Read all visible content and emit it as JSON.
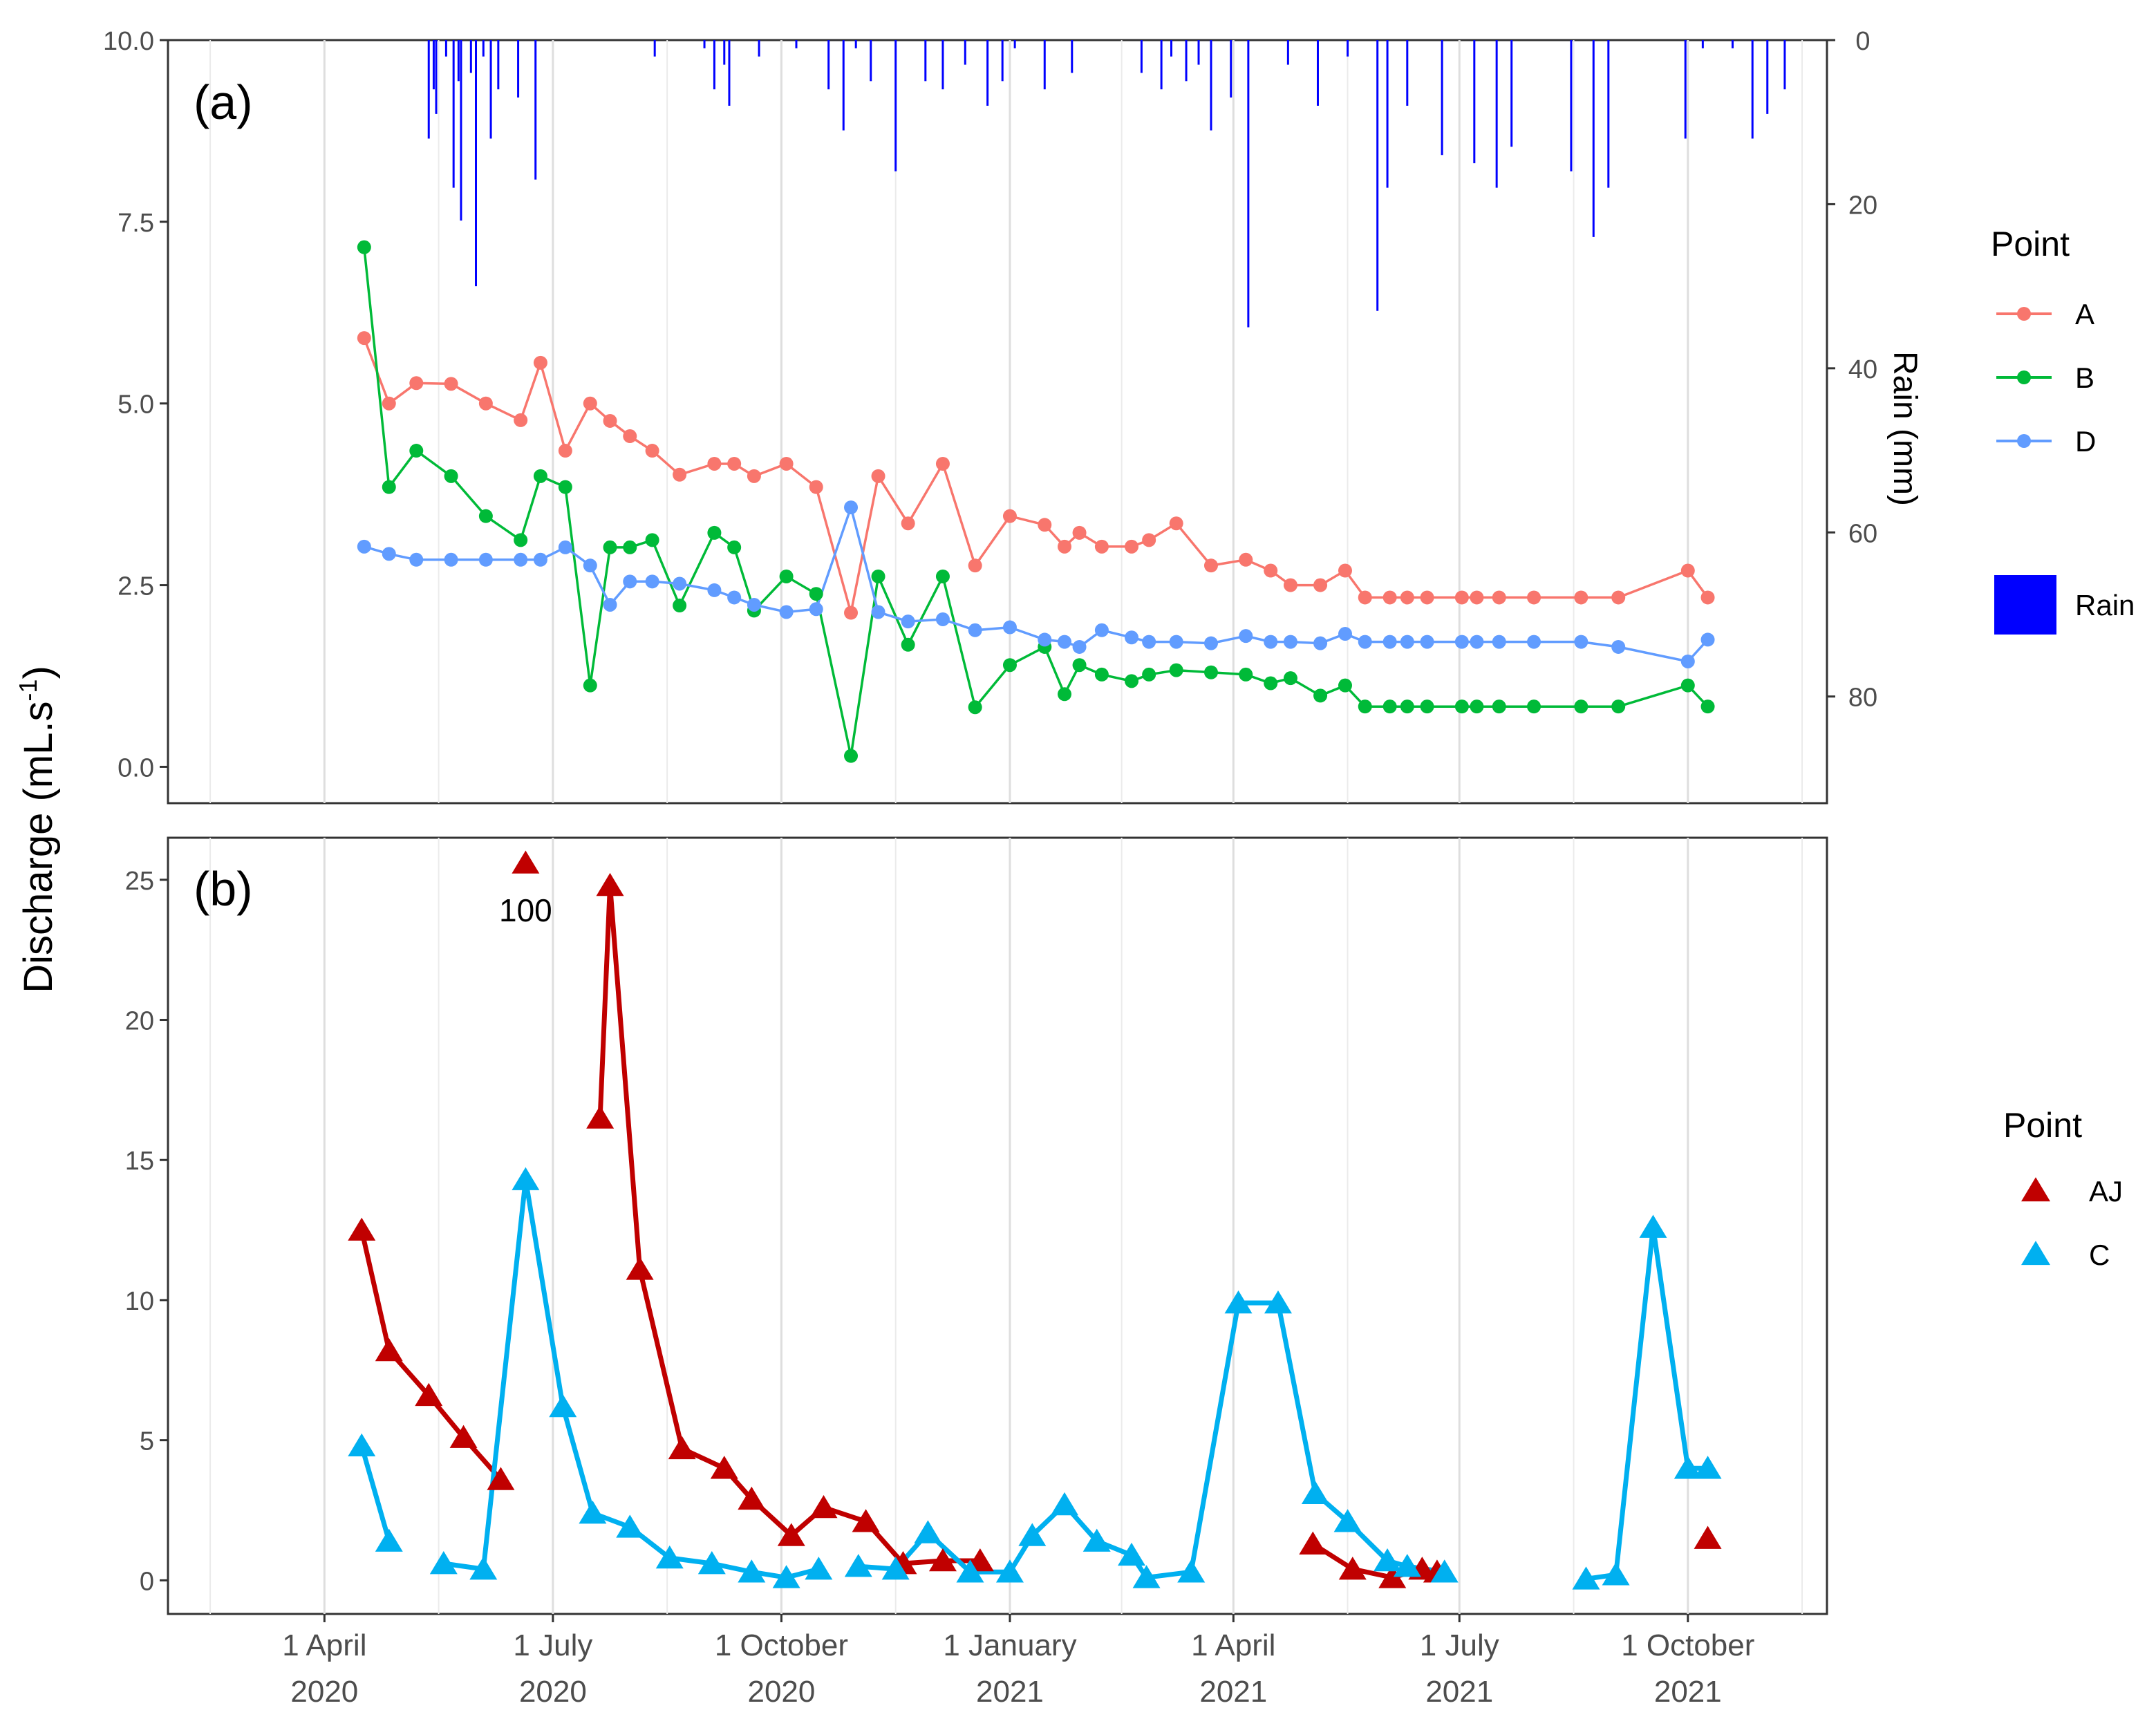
{
  "ylabel": "Discharge (mL.s-1)",
  "x_axis": {
    "ticks": [
      {
        "x": 55,
        "label_top": "1 April",
        "label_bottom": "2020"
      },
      {
        "x": 147,
        "label_top": "1 July",
        "label_bottom": "2020"
      },
      {
        "x": 239,
        "label_top": "1 October",
        "label_bottom": "2020"
      },
      {
        "x": 331,
        "label_top": "1 January",
        "label_bottom": "2021"
      },
      {
        "x": 421,
        "label_top": "1 April",
        "label_bottom": "2021"
      },
      {
        "x": 512,
        "label_top": "1 July",
        "label_bottom": "2021"
      },
      {
        "x": 604,
        "label_top": "1 October",
        "label_bottom": "2021"
      }
    ],
    "minor_grid": [
      9,
      101,
      193,
      285,
      376,
      467,
      558,
      650
    ],
    "xlim": [
      -8,
      660
    ],
    "x_unit": "days since 2020-01-01"
  },
  "chart_data": [
    {
      "type": "line",
      "panel_label": "(a)",
      "ylim": [
        -0.5,
        10.0
      ],
      "yticks": [
        "0.0",
        "2.5",
        "5.0",
        "7.5",
        "10.0"
      ],
      "ytick_values": [
        0,
        2.5,
        5,
        7.5,
        10
      ],
      "secondary_axis": {
        "label": "Rain (mm)",
        "reversed": true,
        "ylim": [
          0,
          93
        ],
        "ticks": [
          0,
          20,
          40,
          60,
          80
        ]
      },
      "legend": {
        "title": "Point",
        "entries": [
          {
            "label": "A",
            "color": "#F8766D"
          },
          {
            "label": "B",
            "color": "#00BA38"
          },
          {
            "label": "D",
            "color": "#619CFF"
          },
          {
            "label": "Rain",
            "color": "#0000FF"
          }
        ]
      },
      "series": [
        {
          "name": "A",
          "color": "#F8766D",
          "x": [
            71,
            81,
            92,
            106,
            120,
            134,
            142,
            152,
            162,
            170,
            178,
            187,
            198,
            212,
            220,
            228,
            241,
            253,
            267,
            278,
            290,
            304,
            317,
            331,
            345,
            353,
            359,
            368,
            380,
            387,
            398,
            412,
            426,
            436,
            444,
            456,
            466,
            474,
            484,
            491,
            499,
            513,
            519,
            528,
            542,
            561,
            576,
            604,
            612
          ],
          "y": [
            5.9,
            5.0,
            5.28,
            5.27,
            5.0,
            4.77,
            5.56,
            4.35,
            5.0,
            4.76,
            4.55,
            4.35,
            4.02,
            4.17,
            4.17,
            4.0,
            4.17,
            3.85,
            2.12,
            4.0,
            3.35,
            4.17,
            2.77,
            3.45,
            3.33,
            3.03,
            3.22,
            3.03,
            3.03,
            3.12,
            3.35,
            2.77,
            2.85,
            2.7,
            2.5,
            2.5,
            2.7,
            2.33,
            2.33,
            2.33,
            2.33,
            2.33,
            2.33,
            2.33,
            2.33,
            2.33,
            2.33,
            2.7,
            2.33
          ]
        },
        {
          "name": "B",
          "color": "#00BA38",
          "x": [
            71,
            81,
            92,
            106,
            120,
            134,
            142,
            152,
            162,
            170,
            178,
            187,
            198,
            212,
            220,
            228,
            241,
            253,
            267,
            278,
            290,
            304,
            317,
            331,
            345,
            353,
            359,
            368,
            380,
            387,
            398,
            412,
            426,
            436,
            444,
            456,
            466,
            474,
            484,
            491,
            499,
            513,
            519,
            528,
            542,
            561,
            576,
            604,
            612
          ],
          "y": [
            7.15,
            3.85,
            4.35,
            4.0,
            3.45,
            3.12,
            4.0,
            3.85,
            1.12,
            3.02,
            3.02,
            3.12,
            2.22,
            3.22,
            3.02,
            2.15,
            2.62,
            2.38,
            0.15,
            2.62,
            1.68,
            2.62,
            0.82,
            1.4,
            1.65,
            1.0,
            1.4,
            1.27,
            1.18,
            1.27,
            1.33,
            1.3,
            1.27,
            1.15,
            1.22,
            0.98,
            1.12,
            0.83,
            0.83,
            0.83,
            0.83,
            0.83,
            0.83,
            0.83,
            0.83,
            0.83,
            0.83,
            1.12,
            0.83
          ]
        },
        {
          "name": "D",
          "color": "#619CFF",
          "x": [
            71,
            81,
            92,
            106,
            120,
            134,
            142,
            152,
            162,
            170,
            178,
            187,
            198,
            212,
            220,
            228,
            241,
            253,
            267,
            278,
            290,
            304,
            317,
            331,
            345,
            353,
            359,
            368,
            380,
            387,
            398,
            412,
            426,
            436,
            444,
            456,
            466,
            474,
            484,
            491,
            499,
            513,
            519,
            528,
            542,
            561,
            576,
            604,
            612
          ],
          "y": [
            3.03,
            2.93,
            2.85,
            2.85,
            2.85,
            2.85,
            2.85,
            3.02,
            2.77,
            2.23,
            2.55,
            2.55,
            2.52,
            2.43,
            2.33,
            2.23,
            2.13,
            2.17,
            3.57,
            2.13,
            2.0,
            2.03,
            1.88,
            1.92,
            1.75,
            1.72,
            1.65,
            1.88,
            1.78,
            1.72,
            1.72,
            1.7,
            1.8,
            1.72,
            1.72,
            1.7,
            1.83,
            1.72,
            1.72,
            1.72,
            1.72,
            1.72,
            1.72,
            1.72,
            1.72,
            1.72,
            1.65,
            1.45,
            1.75
          ]
        },
        {
          "name": "Rain",
          "type": "bar",
          "color": "#0000FF",
          "axis": "secondary",
          "x": [
            97,
            99,
            100,
            104,
            107,
            109,
            110,
            114,
            116,
            119,
            122,
            125,
            133,
            140,
            188,
            208,
            212,
            216,
            218,
            230,
            245,
            258,
            264,
            269,
            275,
            285,
            297,
            304,
            313,
            322,
            328,
            333,
            345,
            356,
            384,
            392,
            396,
            402,
            407,
            412,
            420,
            427,
            443,
            455,
            467,
            479,
            483,
            491,
            505,
            518,
            527,
            533,
            557,
            566,
            572,
            603,
            610,
            622,
            630,
            636,
            643
          ],
          "values": [
            12,
            6,
            9,
            2,
            18,
            5,
            22,
            4,
            30,
            2,
            12,
            6,
            7,
            17,
            2,
            1,
            6,
            3,
            8,
            2,
            1,
            6,
            11,
            1,
            5,
            16,
            5,
            6,
            3,
            8,
            5,
            1,
            6,
            4,
            4,
            6,
            2,
            5,
            3,
            11,
            7,
            35,
            3,
            8,
            2,
            33,
            18,
            8,
            14,
            15,
            18,
            13,
            16,
            24,
            18,
            12,
            1,
            1,
            12,
            9,
            6
          ]
        }
      ]
    },
    {
      "type": "line",
      "panel_label": "(b)",
      "ylim": [
        -1.2,
        26.5
      ],
      "yticks": [
        "0",
        "5",
        "10",
        "15",
        "20",
        "25"
      ],
      "ytick_values": [
        0,
        5,
        10,
        15,
        20,
        25
      ],
      "annotations": [
        {
          "text": "100",
          "x": 136,
          "y": 24.8
        }
      ],
      "legend": {
        "title": "Point",
        "entries": [
          {
            "label": "AJ",
            "color": "#C00000"
          },
          {
            "label": "C",
            "color": "#00B0F0"
          }
        ]
      },
      "series": [
        {
          "name": "AJ",
          "color": "#C00000",
          "segments": [
            {
              "x": [
                70,
                81,
                97,
                111,
                126
              ],
              "y": [
                12.5,
                8.2,
                6.6,
                5.1,
                3.6
              ]
            },
            {
              "x": [
                166,
                170,
                182,
                199,
                216,
                227,
                243,
                256,
                273,
                288,
                304,
                319
              ],
              "y": [
                16.5,
                24.8,
                11.1,
                4.7,
                4.0,
                2.9,
                1.6,
                2.6,
                2.1,
                0.6,
                0.7,
                0.7
              ]
            },
            {
              "x": [
                453,
                469,
                485,
                497,
                503
              ],
              "y": [
                1.3,
                0.4,
                0.1,
                0.4,
                0.3
              ]
            }
          ],
          "markers_only": [
            {
              "x": 136,
              "y": 25.6,
              "label": "100"
            },
            {
              "x": 612,
              "y": 1.5
            }
          ]
        },
        {
          "name": "C",
          "color": "#00B0F0",
          "segments": [
            {
              "x": [
                70,
                81
              ],
              "y": [
                4.8,
                1.4
              ]
            },
            {
              "x": [
                103,
                119,
                136,
                151,
                163,
                178,
                194,
                211,
                227,
                241,
                254
              ],
              "y": [
                0.6,
                0.4,
                14.3,
                6.2,
                2.4,
                1.9,
                0.8,
                0.6,
                0.3,
                0.1,
                0.4
              ]
            },
            {
              "x": [
                270,
                285,
                298,
                315,
                331,
                340,
                353,
                366,
                380,
                386,
                404,
                423,
                439,
                454,
                467,
                483,
                491,
                506
              ],
              "y": [
                0.5,
                0.4,
                1.7,
                0.3,
                0.3,
                1.6,
                2.7,
                1.4,
                0.9,
                0.1,
                0.3,
                9.9,
                9.9,
                3.1,
                2.1,
                0.7,
                0.5,
                0.3
              ]
            },
            {
              "x": [
                563,
                575,
                590,
                604,
                612
              ],
              "y": [
                0.05,
                0.2,
                12.6,
                4.0,
                4.0
              ]
            }
          ]
        }
      ]
    }
  ]
}
